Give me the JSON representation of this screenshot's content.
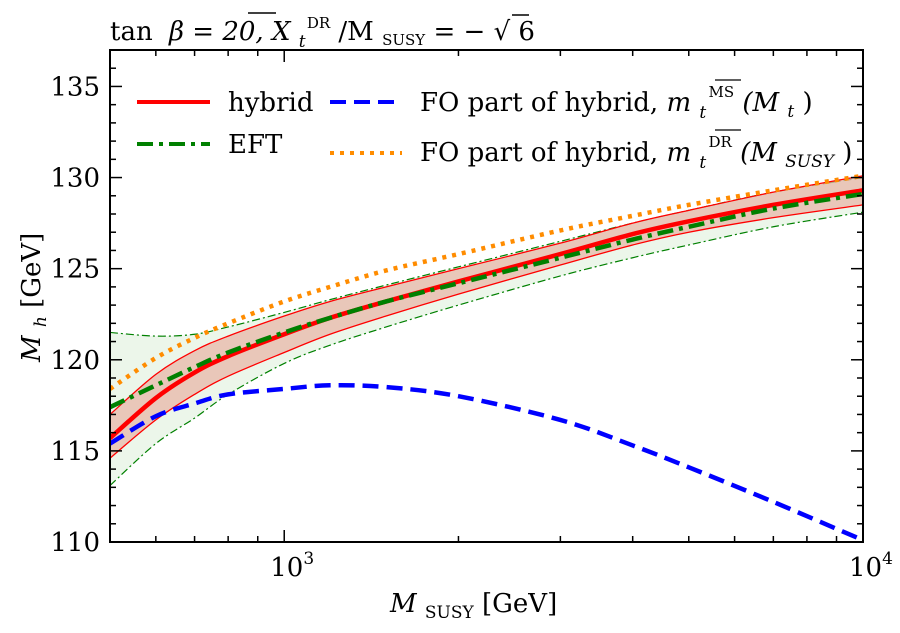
{
  "chart_data": {
    "type": "line",
    "title": "tan β = 20, X_t^DR/M_SUSY = −√6",
    "title_parts": {
      "tanb": "tan",
      "beta": "β = 20, ",
      "xt": "X",
      "xt_sub": "t",
      "xt_sup": "DR",
      "slash_m": "/M",
      "msusy_sub": "SUSY",
      "value": " = −",
      "sqrt_sign": "√",
      "sqrt_arg": "6"
    },
    "xlabel": "M_SUSY [GeV]",
    "xlabel_parts": {
      "m": "M",
      "sub": "SUSY",
      "unit": " [GeV]"
    },
    "ylabel": "M_h [GeV]",
    "ylabel_parts": {
      "m": "M",
      "sub": "h",
      "unit": " [GeV]"
    },
    "x_scale": "log",
    "xlim": [
      500,
      10000
    ],
    "ylim": [
      110,
      137
    ],
    "x_ticks": [
      {
        "value": 1000,
        "base": "10",
        "exp": "3"
      },
      {
        "value": 10000,
        "base": "10",
        "exp": "4"
      }
    ],
    "y_ticks": [
      110,
      115,
      120,
      125,
      130,
      135
    ],
    "grid": false,
    "legend_position": "top",
    "x": [
      500,
      600,
      700,
      800,
      1000,
      1200,
      1500,
      2000,
      3000,
      4000,
      5000,
      7000,
      10000
    ],
    "series": [
      {
        "name": "hybrid",
        "color": "#ff0000",
        "style": "solid",
        "values": [
          115.7,
          117.9,
          119.3,
          120.2,
          121.4,
          122.3,
          123.2,
          124.3,
          125.8,
          126.9,
          127.6,
          128.5,
          129.3
        ],
        "band_upper": [
          117.0,
          119.2,
          120.5,
          121.3,
          122.4,
          123.2,
          124.0,
          125.0,
          126.4,
          127.5,
          128.2,
          129.2,
          130.1
        ],
        "band_lower": [
          114.6,
          116.7,
          118.1,
          119.1,
          120.4,
          121.4,
          122.4,
          123.6,
          125.2,
          126.3,
          127.0,
          127.8,
          128.5
        ]
      },
      {
        "name": "EFT",
        "color": "#008000",
        "style": "dashdot",
        "values": [
          117.4,
          118.6,
          119.6,
          120.4,
          121.5,
          122.3,
          123.2,
          124.2,
          125.6,
          126.6,
          127.3,
          128.3,
          129.1
        ],
        "band_upper": [
          121.5,
          121.3,
          121.4,
          121.8,
          122.6,
          123.3,
          124.1,
          125.1,
          126.5,
          127.5,
          128.2,
          129.2,
          130.0
        ],
        "band_lower": [
          113.1,
          115.4,
          116.8,
          118.1,
          119.8,
          120.8,
          121.8,
          123.0,
          124.6,
          125.6,
          126.3,
          127.3,
          128.1
        ]
      },
      {
        "name": "FO part of hybrid, m_t^MS(M_t)",
        "color": "#0000ff",
        "style": "dashed",
        "values": [
          115.4,
          116.9,
          117.6,
          118.1,
          118.4,
          118.6,
          118.5,
          118.0,
          116.7,
          115.3,
          114.1,
          112.2,
          110.1
        ]
      },
      {
        "name": "FO part of hybrid, m_t^DR(M_SUSY)",
        "color": "#ff8c00",
        "style": "dotted",
        "values": [
          118.4,
          120.1,
          121.2,
          122.0,
          123.2,
          124.0,
          124.9,
          125.8,
          127.1,
          127.9,
          128.5,
          129.3,
          130.1
        ]
      }
    ],
    "legend": {
      "hybrid": "hybrid",
      "eft": "EFT",
      "fo_ms_text": "FO part of hybrid, ",
      "fo_ms_m": "m",
      "fo_ms_sub": "t",
      "fo_ms_sup": "MS",
      "fo_ms_arg_open": "(M",
      "fo_ms_arg_sub": "t",
      "fo_ms_arg_close": ")",
      "fo_dr_text": "FO part of hybrid, ",
      "fo_dr_m": "m",
      "fo_dr_sub": "t",
      "fo_dr_sup": "DR",
      "fo_dr_arg_open": "(M",
      "fo_dr_arg_sub": "SUSY",
      "fo_dr_arg_close": ")"
    }
  }
}
